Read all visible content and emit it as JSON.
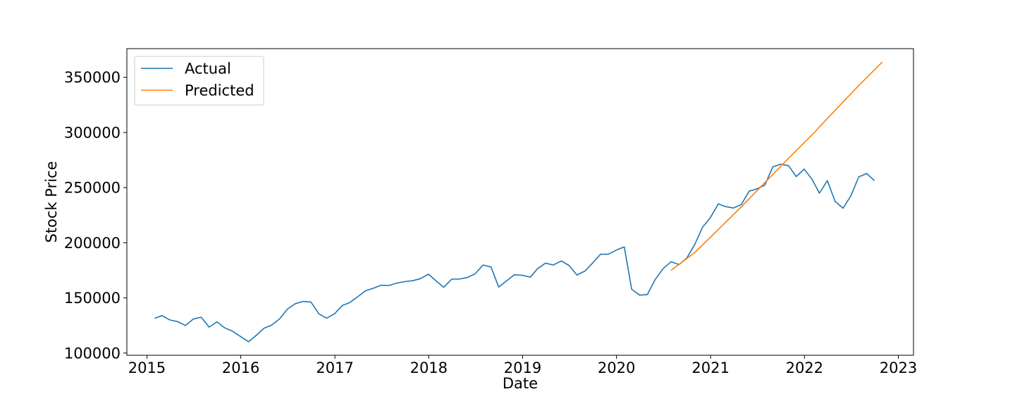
{
  "chart_data": {
    "type": "line",
    "xlabel": "Date",
    "ylabel": "Stock Price",
    "xlim": [
      "2014-10-15",
      "2023-03-01"
    ],
    "ylim": [
      98000,
      376000
    ],
    "x_ticks": [
      {
        "date": "2015-01-01",
        "label": "2015"
      },
      {
        "date": "2016-01-01",
        "label": "2016"
      },
      {
        "date": "2017-01-01",
        "label": "2017"
      },
      {
        "date": "2018-01-01",
        "label": "2018"
      },
      {
        "date": "2019-01-01",
        "label": "2019"
      },
      {
        "date": "2020-01-01",
        "label": "2020"
      },
      {
        "date": "2021-01-01",
        "label": "2021"
      },
      {
        "date": "2022-01-01",
        "label": "2022"
      },
      {
        "date": "2023-01-01",
        "label": "2023"
      }
    ],
    "y_ticks": [
      {
        "value": 100000,
        "label": "100000"
      },
      {
        "value": 150000,
        "label": "150000"
      },
      {
        "value": 200000,
        "label": "200000"
      },
      {
        "value": 250000,
        "label": "250000"
      },
      {
        "value": 300000,
        "label": "300000"
      },
      {
        "value": 350000,
        "label": "350000"
      }
    ],
    "grid": false,
    "legend_position": "upper-left",
    "series": [
      {
        "name": "Actual",
        "color": "#1f77b4",
        "points": [
          [
            "2015-01-31",
            131500
          ],
          [
            "2015-02-28",
            134000
          ],
          [
            "2015-03-31",
            130000
          ],
          [
            "2015-04-30",
            128500
          ],
          [
            "2015-05-31",
            125000
          ],
          [
            "2015-06-30",
            130800
          ],
          [
            "2015-07-31",
            132500
          ],
          [
            "2015-08-31",
            123500
          ],
          [
            "2015-09-30",
            128300
          ],
          [
            "2015-10-31",
            122800
          ],
          [
            "2015-11-30",
            119800
          ],
          [
            "2015-12-31",
            115000
          ],
          [
            "2016-01-31",
            110200
          ],
          [
            "2016-02-29",
            115800
          ],
          [
            "2016-03-31",
            122500
          ],
          [
            "2016-04-30",
            125300
          ],
          [
            "2016-05-31",
            131000
          ],
          [
            "2016-06-30",
            139800
          ],
          [
            "2016-07-31",
            144800
          ],
          [
            "2016-08-31",
            146800
          ],
          [
            "2016-09-30",
            146200
          ],
          [
            "2016-10-31",
            135500
          ],
          [
            "2016-11-30",
            131600
          ],
          [
            "2016-12-31",
            135800
          ],
          [
            "2017-01-31",
            143300
          ],
          [
            "2017-02-28",
            145800
          ],
          [
            "2017-03-31",
            151100
          ],
          [
            "2017-04-30",
            156500
          ],
          [
            "2017-05-31",
            158800
          ],
          [
            "2017-06-30",
            161500
          ],
          [
            "2017-07-31",
            161300
          ],
          [
            "2017-08-31",
            163500
          ],
          [
            "2017-09-30",
            164800
          ],
          [
            "2017-10-31",
            165600
          ],
          [
            "2017-11-30",
            167500
          ],
          [
            "2017-12-31",
            171500
          ],
          [
            "2018-01-31",
            165100
          ],
          [
            "2018-02-28",
            159600
          ],
          [
            "2018-03-31",
            167000
          ],
          [
            "2018-04-30",
            167100
          ],
          [
            "2018-05-31",
            168500
          ],
          [
            "2018-06-30",
            171800
          ],
          [
            "2018-07-31",
            179800
          ],
          [
            "2018-08-31",
            178100
          ],
          [
            "2018-09-30",
            159800
          ],
          [
            "2018-10-31",
            165500
          ],
          [
            "2018-11-30",
            171000
          ],
          [
            "2018-12-31",
            170500
          ],
          [
            "2019-01-31",
            168800
          ],
          [
            "2019-02-28",
            176500
          ],
          [
            "2019-03-31",
            181500
          ],
          [
            "2019-04-30",
            179800
          ],
          [
            "2019-05-31",
            183500
          ],
          [
            "2019-06-30",
            179500
          ],
          [
            "2019-07-31",
            170800
          ],
          [
            "2019-08-31",
            174300
          ],
          [
            "2019-09-30",
            181600
          ],
          [
            "2019-10-31",
            189600
          ],
          [
            "2019-11-30",
            189600
          ],
          [
            "2019-12-31",
            193300
          ],
          [
            "2020-01-31",
            196300
          ],
          [
            "2020-02-29",
            157800
          ],
          [
            "2020-03-31",
            152500
          ],
          [
            "2020-04-30",
            153000
          ],
          [
            "2020-05-31",
            166800
          ],
          [
            "2020-06-30",
            176500
          ],
          [
            "2020-07-31",
            182800
          ],
          [
            "2020-08-31",
            180200
          ],
          [
            "2020-09-30",
            186000
          ],
          [
            "2020-10-31",
            198200
          ],
          [
            "2020-11-30",
            213800
          ],
          [
            "2020-12-31",
            222800
          ],
          [
            "2021-01-31",
            235300
          ],
          [
            "2021-02-28",
            232800
          ],
          [
            "2021-03-31",
            231500
          ],
          [
            "2021-04-30",
            234600
          ],
          [
            "2021-05-31",
            246800
          ],
          [
            "2021-06-30",
            248800
          ],
          [
            "2021-07-31",
            252300
          ],
          [
            "2021-08-31",
            268800
          ],
          [
            "2021-09-30",
            271200
          ],
          [
            "2021-10-31",
            270000
          ],
          [
            "2021-11-30",
            260000
          ],
          [
            "2021-12-31",
            266800
          ],
          [
            "2022-01-31",
            257300
          ],
          [
            "2022-02-28",
            245000
          ],
          [
            "2022-03-31",
            256300
          ],
          [
            "2022-04-30",
            237600
          ],
          [
            "2022-05-31",
            231300
          ],
          [
            "2022-06-30",
            242300
          ],
          [
            "2022-07-31",
            259700
          ],
          [
            "2022-08-31",
            262800
          ],
          [
            "2022-09-30",
            256300
          ]
        ]
      },
      {
        "name": "Predicted",
        "color": "#ff7f0e",
        "points": [
          [
            "2020-07-31",
            175000
          ],
          [
            "2020-10-31",
            191000
          ],
          [
            "2021-01-31",
            212000
          ],
          [
            "2021-04-30",
            232500
          ],
          [
            "2021-07-31",
            254500
          ],
          [
            "2021-10-31",
            276500
          ],
          [
            "2022-01-31",
            298000
          ],
          [
            "2022-04-30",
            320000
          ],
          [
            "2022-07-31",
            342500
          ],
          [
            "2022-10-31",
            364000
          ]
        ]
      }
    ]
  }
}
